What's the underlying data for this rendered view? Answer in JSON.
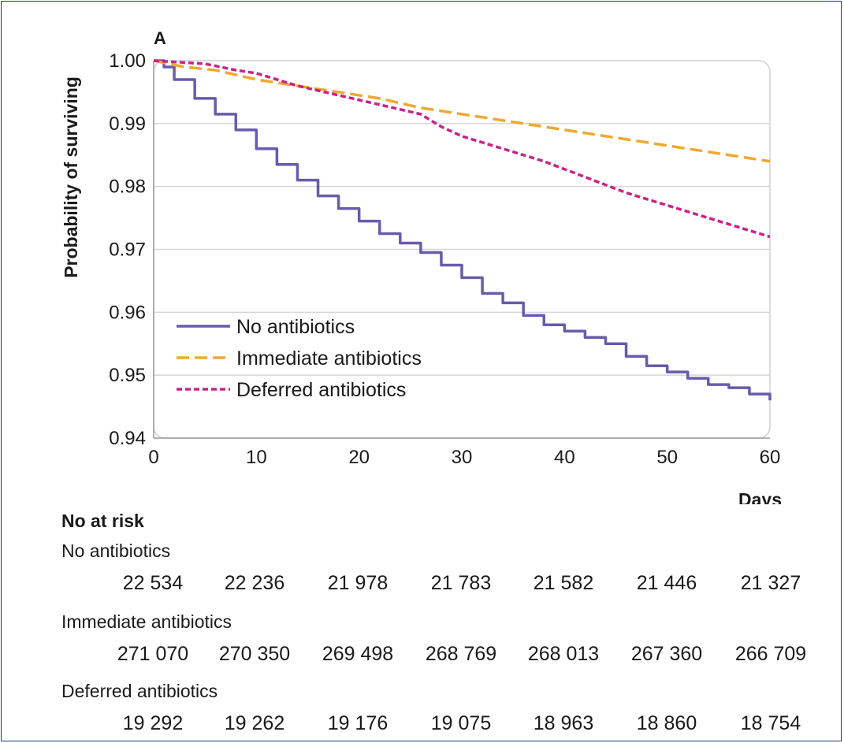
{
  "chart_data": {
    "type": "line",
    "panel_label": "A",
    "xlabel": "Days",
    "ylabel": "Probability of surviving",
    "xlim": [
      0,
      60
    ],
    "ylim": [
      0.94,
      1.0
    ],
    "x_ticks": [
      0,
      10,
      20,
      30,
      40,
      50,
      60
    ],
    "y_ticks": [
      "1.00",
      "0.99",
      "0.98",
      "0.97",
      "0.96",
      "0.95",
      "0.94"
    ],
    "y_tick_values": [
      1.0,
      0.99,
      0.98,
      0.97,
      0.96,
      0.95,
      0.94
    ],
    "grid": "horizontal",
    "legend_position": "bottom-left",
    "series": [
      {
        "name": "No antibiotics",
        "color": "#6a5bab",
        "style": "solid",
        "x": [
          0,
          1,
          2,
          4,
          6,
          8,
          10,
          12,
          14,
          16,
          18,
          20,
          22,
          24,
          26,
          28,
          30,
          32,
          34,
          36,
          38,
          40,
          42,
          44,
          46,
          48,
          50,
          52,
          54,
          56,
          58,
          60
        ],
        "y": [
          1.0,
          0.999,
          0.997,
          0.994,
          0.9915,
          0.989,
          0.986,
          0.9835,
          0.981,
          0.9785,
          0.9765,
          0.9745,
          0.9725,
          0.971,
          0.9695,
          0.9675,
          0.9655,
          0.963,
          0.9615,
          0.9595,
          0.958,
          0.957,
          0.956,
          0.955,
          0.953,
          0.9515,
          0.9505,
          0.9495,
          0.9485,
          0.948,
          0.947,
          0.946
        ]
      },
      {
        "name": "Immediate antibiotics",
        "color": "#f0a830",
        "style": "dashed",
        "x": [
          0,
          3,
          6,
          10,
          14,
          18,
          22,
          26,
          30,
          34,
          38,
          42,
          46,
          50,
          54,
          58,
          60
        ],
        "y": [
          1.0,
          0.999,
          0.9985,
          0.997,
          0.996,
          0.995,
          0.994,
          0.9925,
          0.9915,
          0.9905,
          0.9895,
          0.9885,
          0.9875,
          0.9865,
          0.9855,
          0.9845,
          0.984
        ]
      },
      {
        "name": "Deferred antibiotics",
        "color": "#c8238a",
        "style": "dotted",
        "x": [
          0,
          5,
          8,
          10,
          14,
          18,
          22,
          26,
          28,
          30,
          34,
          38,
          42,
          46,
          50,
          54,
          58,
          60
        ],
        "y": [
          1.0,
          0.9995,
          0.9985,
          0.998,
          0.996,
          0.9945,
          0.993,
          0.9915,
          0.9895,
          0.988,
          0.986,
          0.984,
          0.9815,
          0.979,
          0.977,
          0.975,
          0.973,
          0.972
        ]
      }
    ],
    "risk_table": {
      "heading": "No at risk",
      "groups": [
        {
          "name": "No antibiotics",
          "values": [
            "22 534",
            "22 236",
            "21 978",
            "21 783",
            "21 582",
            "21 446",
            "21 327"
          ]
        },
        {
          "name": "Immediate antibiotics",
          "values": [
            "271 070",
            "270 350",
            "269 498",
            "268 769",
            "268 013",
            "267 360",
            "266 709"
          ]
        },
        {
          "name": "Deferred antibiotics",
          "values": [
            "19 292",
            "19 262",
            "19 176",
            "19 075",
            "18 963",
            "18 860",
            "18 754"
          ]
        }
      ]
    }
  }
}
